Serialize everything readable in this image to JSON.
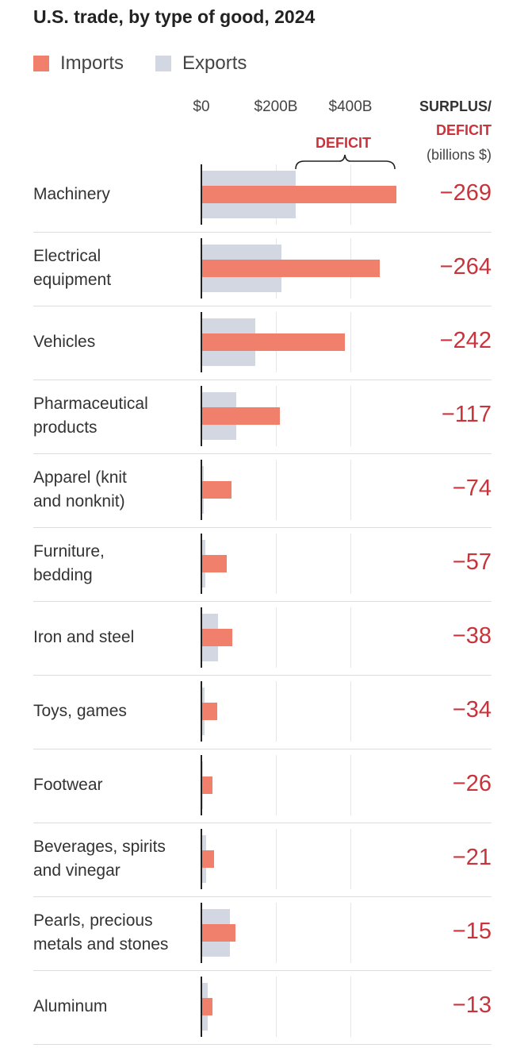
{
  "chart_data": {
    "type": "bar",
    "title": "U.S. trade, by type of good, 2024",
    "legend": [
      {
        "name": "Imports",
        "color": "#f07f6c"
      },
      {
        "name": "Exports",
        "color": "#d3d7e2"
      }
    ],
    "x_ticks": [
      "$0",
      "$200B",
      "$400B"
    ],
    "x_tick_values": [
      0,
      200,
      400
    ],
    "xlim": [
      0,
      530
    ],
    "annotation": "DEFICIT",
    "right_header": {
      "line1": "SURPLUS/",
      "line2": "DEFICIT",
      "line3": "(billions $)"
    },
    "categories": [
      [
        "Machinery"
      ],
      [
        "Electrical",
        "equipment"
      ],
      [
        "Vehicles"
      ],
      [
        "Pharmaceutical",
        "products"
      ],
      [
        "Apparel (knit",
        "and nonknit)"
      ],
      [
        "Furniture,",
        "bedding"
      ],
      [
        "Iron and steel"
      ],
      [
        "Toys, games"
      ],
      [
        "Footwear"
      ],
      [
        "Beverages, spirits",
        "and vinegar"
      ],
      [
        "Pearls, precious",
        "metals and stones"
      ],
      [
        "Aluminum"
      ]
    ],
    "series": [
      {
        "name": "Imports",
        "values": [
          523,
          479,
          386,
          211,
          81,
          68,
          83,
          43,
          30,
          34,
          91,
          30
        ]
      },
      {
        "name": "Exports",
        "values": [
          254,
          215,
          144,
          94,
          7,
          11,
          45,
          9,
          4,
          13,
          76,
          17
        ]
      }
    ],
    "balance": [
      "−269",
      "−264",
      "−242",
      "−117",
      "−74",
      "−57",
      "−38",
      "−34",
      "−26",
      "−21",
      "−15",
      "−13"
    ]
  }
}
